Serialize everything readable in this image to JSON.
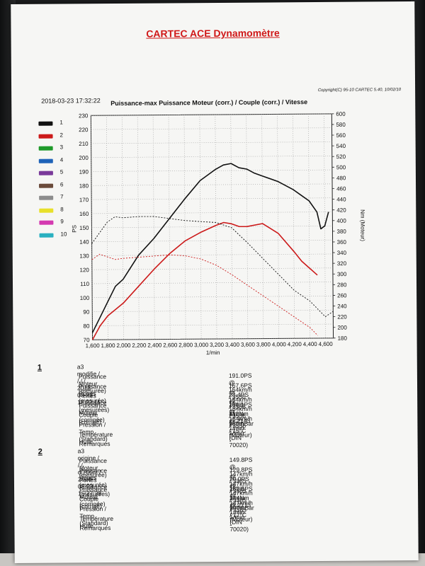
{
  "title": "CARTEC ACE Dynamomètre",
  "timestamp": "2018-03-23 17:32:22",
  "copyright": "Copyright(C) 95-10 CARTEC 5.40, 10/02/10",
  "colors": {
    "paper": "#f6f6f4",
    "title": "#d01818",
    "grid": "#9a9a9a"
  },
  "legend": [
    {
      "num": "1",
      "color": "#111111"
    },
    {
      "num": "2",
      "color": "#cc1a1a"
    },
    {
      "num": "3",
      "color": "#1f9a2a"
    },
    {
      "num": "4",
      "color": "#1f63b8"
    },
    {
      "num": "5",
      "color": "#7a3a9a"
    },
    {
      "num": "6",
      "color": "#6a4a3a"
    },
    {
      "num": "7",
      "color": "#8c8c8c"
    },
    {
      "num": "8",
      "color": "#e8e02a"
    },
    {
      "num": "9",
      "color": "#d43ab0"
    },
    {
      "num": "10",
      "color": "#2ab0c0"
    }
  ],
  "chart_data": {
    "type": "line",
    "title": "Puissance-max Puissance Moteur (corr.) / Couple (corr.) / Vitesse",
    "xlabel": "1/min",
    "ylabel": "PS",
    "ylabel_right": "Nm (Moteur)",
    "xlim": [
      1600,
      4700
    ],
    "ylim": [
      70,
      230
    ],
    "ylim_right": [
      180,
      600
    ],
    "x_ticks": [
      "1,600",
      "1,800",
      "2,000",
      "2,200",
      "2,400",
      "2,600",
      "2,800",
      "3,000",
      "3,200",
      "3,400",
      "3,600",
      "3,800",
      "4,000",
      "4,200",
      "4,400",
      "4,600"
    ],
    "y_ticks": [
      70,
      80,
      90,
      100,
      110,
      120,
      130,
      140,
      150,
      160,
      170,
      180,
      190,
      200,
      210,
      220,
      230
    ],
    "y_ticks_right": [
      180,
      200,
      220,
      240,
      260,
      280,
      300,
      320,
      340,
      360,
      380,
      400,
      420,
      440,
      460,
      480,
      500,
      520,
      540,
      560,
      580,
      600
    ],
    "grid": true,
    "series": [
      {
        "name": "1",
        "quantity": "power",
        "axis": "left",
        "color": "#111111",
        "style": "solid",
        "x": [
          1600,
          1700,
          1800,
          1900,
          2000,
          2200,
          2400,
          2600,
          2800,
          3000,
          3200,
          3300,
          3400,
          3500,
          3600,
          3700,
          3800,
          4000,
          4200,
          4300,
          4400,
          4500,
          4550,
          4600,
          4650
        ],
        "y": [
          75,
          86,
          97,
          108,
          113,
          130,
          142,
          156,
          170,
          183,
          191,
          194,
          195,
          192,
          191,
          188,
          186,
          182,
          176,
          172,
          168,
          160,
          148,
          150,
          160
        ]
      },
      {
        "name": "2",
        "quantity": "power",
        "axis": "left",
        "color": "#cc1a1a",
        "style": "solid",
        "x": [
          1600,
          1700,
          1800,
          2000,
          2200,
          2400,
          2600,
          2800,
          3000,
          3200,
          3300,
          3400,
          3500,
          3600,
          3800,
          4000,
          4200,
          4300,
          4400,
          4500
        ],
        "y": [
          70,
          80,
          87,
          96,
          108,
          120,
          131,
          140,
          146,
          151,
          153,
          152,
          150,
          150,
          152,
          145,
          132,
          125,
          120,
          115
        ]
      },
      {
        "name": "1",
        "quantity": "torque",
        "axis": "right",
        "color": "#111111",
        "style": "dashed",
        "x": [
          1600,
          1700,
          1800,
          1900,
          2000,
          2200,
          2400,
          2600,
          2800,
          3000,
          3200,
          3400,
          3600,
          3800,
          4000,
          4200,
          4400,
          4600,
          4700
        ],
        "y": [
          360,
          380,
          400,
          410,
          408,
          410,
          410,
          406,
          402,
          400,
          398,
          388,
          360,
          330,
          300,
          270,
          250,
          220,
          230
        ]
      },
      {
        "name": "2",
        "quantity": "torque",
        "axis": "right",
        "color": "#cc1a1a",
        "style": "dashed",
        "x": [
          1600,
          1700,
          1800,
          1900,
          2000,
          2200,
          2400,
          2600,
          2800,
          3000,
          3200,
          3400,
          3600,
          3800,
          4000,
          4200,
          4400,
          4500
        ],
        "y": [
          330,
          340,
          335,
          330,
          332,
          334,
          336,
          338,
          336,
          330,
          318,
          300,
          280,
          260,
          240,
          220,
          200,
          185
        ]
      }
    ]
  },
  "runs": [
    {
      "num": "1",
      "header": "a3 modifie  /  /  /  / 2018-03-23 17:22:11",
      "rows": [
        {
          "label": "Puissance Moteur (mesurée)",
          "value": "191.0PS @ 154km/h / 3556 1/min"
        },
        {
          "label": "Puissance Roues (mesurée)",
          "value": "167.6PS @ 154km/h / 3556 1/min"
        },
        {
          "label": "Pertes Puissance (mesurées)",
          "value": "23.4PS @ 154km/h / 3556 1/min"
        },
        {
          "label": "Puissance Moteur (corrigée)",
          "value": "194.1PS @ 154km/h / 3556 1/min"
        },
        {
          "label": "Couple (corrigé)",
          "value": "412Nm @ 2143 1/min (Moteur)"
        },
        {
          "label": "Pression / Temp. (Standard)",
          "value": "989mBar / 15°C     (DIN 70020)"
        },
        {
          "label": "Température Huile",
          "value": "--"
        },
        {
          "label": "Remarques",
          "value": ""
        }
      ]
    },
    {
      "num": "2",
      "header": "a3 origine  /  /  / dl706cr / 2018-03-23 15:27:39",
      "rows": [
        {
          "label": "Puissance Moteur (mesurée)",
          "value": "149.8PS @ 147km/h / 3385 1/min"
        },
        {
          "label": "Puissance Roues (mesurée)",
          "value": "129.8PS @ 147km/h / 3385 1/min"
        },
        {
          "label": "Pertes Puissance (mesurées)",
          "value": "20.0PS @ 147km/h / 3385 1/min"
        },
        {
          "label": "Puissance Moteur (corrigée)",
          "value": "152.5PS @ 147km/h / 3385 1/min"
        },
        {
          "label": "Couple (corrigé)",
          "value": "344Nm @ 1713 1/min (Moteur)"
        },
        {
          "label": "Pression / Temp. (Standard)",
          "value": "990mBar / 17°C     (DIN 70020)"
        },
        {
          "label": "Température Huile",
          "value": "--"
        },
        {
          "label": "Remarques",
          "value": ""
        }
      ]
    }
  ]
}
